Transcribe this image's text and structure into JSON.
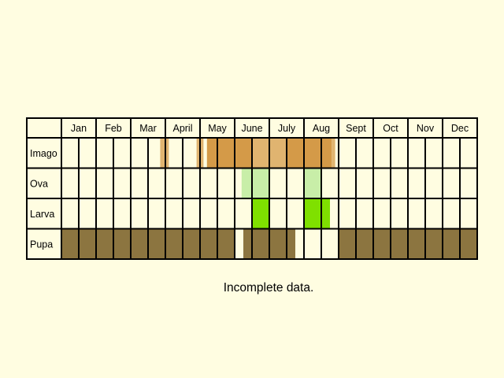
{
  "months": [
    "Jan",
    "Feb",
    "Mar",
    "April",
    "May",
    "June",
    "July",
    "Aug",
    "Sept",
    "Oct",
    "Nov",
    "Dec"
  ],
  "stages": [
    {
      "key": "imago",
      "label": "Imago"
    },
    {
      "key": "ova",
      "label": "Ova"
    },
    {
      "key": "larva",
      "label": "Larva"
    },
    {
      "key": "pupa",
      "label": "Pupa"
    }
  ],
  "colors": {
    "background": "#FFFDE1",
    "grid": "#000000",
    "imago_dark": "#D49A48",
    "imago_light": "#E0B470",
    "ova": "#C8EEA8",
    "larva": "#7FE000",
    "pupa": "#8C7540"
  },
  "presence": {
    "imago": [
      {
        "start": 2.85,
        "end": 3.1,
        "shade": "light"
      },
      {
        "start": 3.9,
        "end": 4.1,
        "shade": "light"
      },
      {
        "start": 4.2,
        "end": 5.5,
        "shade": "dark"
      },
      {
        "start": 5.5,
        "end": 6.5,
        "shade": "light"
      },
      {
        "start": 6.5,
        "end": 7.8,
        "shade": "dark"
      },
      {
        "start": 7.8,
        "end": 7.9,
        "shade": "light"
      }
    ],
    "ova": [
      {
        "start": 5.2,
        "end": 6.0
      },
      {
        "start": 7.0,
        "end": 7.5
      }
    ],
    "larva": [
      {
        "start": 5.5,
        "end": 6.0
      },
      {
        "start": 7.0,
        "end": 7.75
      }
    ],
    "pupa": [
      {
        "start": 0,
        "end": 5.0
      },
      {
        "start": 5.25,
        "end": 6.75
      },
      {
        "start": 8.0,
        "end": 12.0
      }
    ]
  },
  "note": "Incomplete data."
}
